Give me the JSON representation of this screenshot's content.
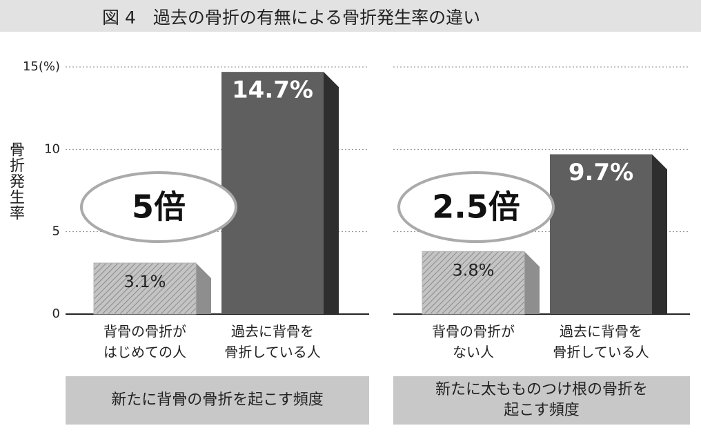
{
  "title": "図 4　過去の骨折の有無による骨折発生率の違い",
  "chart_data": [
    {
      "type": "bar",
      "ylabel": "骨折発生率",
      "categories": [
        "背骨の骨折が\nはじめての人",
        "過去に背骨を\n骨折している人"
      ],
      "values": [
        3.1,
        14.7
      ],
      "value_labels": [
        "3.1%",
        "14.7%"
      ],
      "colors": [
        "#b4b4b4",
        "#5f5f5f"
      ],
      "hatched": [
        true,
        false
      ],
      "ylim": [
        0,
        15
      ],
      "yticks": [
        0,
        5,
        10,
        {
          "value": 15,
          "label": "15(%)"
        }
      ],
      "grid": true,
      "annotation": "5倍",
      "caption": "新たに背骨の骨折を起こす頻度"
    },
    {
      "type": "bar",
      "categories": [
        "背骨の骨折が\nない人",
        "過去に背骨を\n骨折している人"
      ],
      "values": [
        3.8,
        9.7
      ],
      "value_labels": [
        "3.8%",
        "9.7%"
      ],
      "colors": [
        "#b4b4b4",
        "#5f5f5f"
      ],
      "hatched": [
        true,
        false
      ],
      "ylim": [
        0,
        15
      ],
      "yticks": [
        0,
        5,
        10,
        15
      ],
      "ytick_labels_visible": false,
      "grid": true,
      "annotation": "2.5倍",
      "caption": "新たに太もものつけ根の骨折を\n起こす頻度"
    }
  ]
}
